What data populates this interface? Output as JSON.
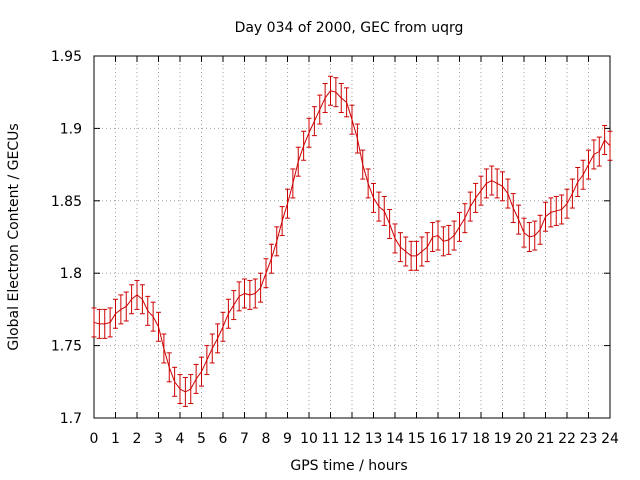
{
  "chart_data": {
    "type": "line",
    "title": "Day 034 of 2000, GEC from uqrg",
    "xlabel": "GPS time / hours",
    "ylabel": "Global Electron Content / GECUs",
    "xlim": [
      0,
      24
    ],
    "ylim": [
      1.7,
      1.95
    ],
    "xticks": [
      0,
      1,
      2,
      3,
      4,
      5,
      6,
      7,
      8,
      9,
      10,
      11,
      12,
      13,
      14,
      15,
      16,
      17,
      18,
      19,
      20,
      21,
      22,
      23,
      24
    ],
    "yticks": [
      1.7,
      1.75,
      1.8,
      1.85,
      1.9,
      1.95
    ],
    "grid": true,
    "series_color": "#cc0000",
    "error": 0.01,
    "series": [
      {
        "name": "GEC",
        "x": [
          0,
          0.25,
          0.5,
          0.75,
          1,
          1.25,
          1.5,
          1.75,
          2,
          2.25,
          2.5,
          2.75,
          3,
          3.25,
          3.5,
          3.75,
          4,
          4.25,
          4.5,
          4.75,
          5,
          5.25,
          5.5,
          5.75,
          6,
          6.25,
          6.5,
          6.75,
          7,
          7.25,
          7.5,
          7.75,
          8,
          8.25,
          8.5,
          8.75,
          9,
          9.25,
          9.5,
          9.75,
          10,
          10.25,
          10.5,
          10.75,
          11,
          11.25,
          11.5,
          11.75,
          12,
          12.25,
          12.5,
          12.75,
          13,
          13.25,
          13.5,
          13.75,
          14,
          14.25,
          14.5,
          14.75,
          15,
          15.25,
          15.5,
          15.75,
          16,
          16.25,
          16.5,
          16.75,
          17,
          17.25,
          17.5,
          17.75,
          18,
          18.25,
          18.5,
          18.75,
          19,
          19.25,
          19.5,
          19.75,
          20,
          20.25,
          20.5,
          20.75,
          21,
          21.25,
          21.5,
          21.75,
          22,
          22.25,
          22.5,
          22.75,
          23,
          23.25,
          23.5,
          23.75,
          24
        ],
        "y": [
          1.766,
          1.765,
          1.765,
          1.766,
          1.772,
          1.775,
          1.777,
          1.782,
          1.785,
          1.782,
          1.774,
          1.77,
          1.763,
          1.748,
          1.735,
          1.725,
          1.72,
          1.718,
          1.72,
          1.727,
          1.732,
          1.74,
          1.748,
          1.755,
          1.763,
          1.772,
          1.778,
          1.784,
          1.786,
          1.785,
          1.786,
          1.79,
          1.8,
          1.81,
          1.822,
          1.836,
          1.848,
          1.862,
          1.877,
          1.888,
          1.897,
          1.905,
          1.913,
          1.921,
          1.926,
          1.925,
          1.921,
          1.918,
          1.906,
          1.893,
          1.875,
          1.862,
          1.852,
          1.846,
          1.843,
          1.834,
          1.824,
          1.818,
          1.815,
          1.812,
          1.812,
          1.815,
          1.818,
          1.825,
          1.826,
          1.822,
          1.823,
          1.826,
          1.832,
          1.838,
          1.846,
          1.852,
          1.857,
          1.862,
          1.864,
          1.862,
          1.86,
          1.855,
          1.845,
          1.837,
          1.828,
          1.825,
          1.826,
          1.83,
          1.839,
          1.842,
          1.843,
          1.844,
          1.848,
          1.855,
          1.863,
          1.868,
          1.875,
          1.882,
          1.884,
          1.892,
          1.888
        ]
      }
    ]
  }
}
